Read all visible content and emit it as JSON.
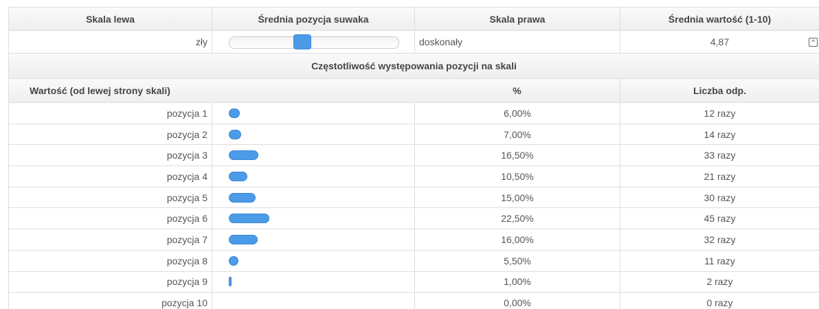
{
  "header": {
    "left": "Skala lewa",
    "slider": "Średnia pozycja suwaka",
    "right": "Skala prawa",
    "average": "Średnia wartość (1-10)"
  },
  "slider_row": {
    "left": "zły",
    "right": "doskonały",
    "average": "4,87"
  },
  "frequency": {
    "title": "Częstotliwość występowania pozycji na skali",
    "columns": [
      "Wartość (od lewej strony skali)",
      "%",
      "Liczba odp."
    ],
    "rows": [
      {
        "label": "pozycja 1",
        "percent": {
          "value": 6,
          "label": "6,00%"
        },
        "count": "12 razy"
      },
      {
        "label": "pozycja 2",
        "percent": {
          "value": 7,
          "label": "7,00%"
        },
        "count": "14 razy"
      },
      {
        "label": "pozycja 3",
        "percent": {
          "value": 16.5,
          "label": "16,50%"
        },
        "count": "33 razy"
      },
      {
        "label": "pozycja 4",
        "percent": {
          "value": 10.5,
          "label": "10,50%"
        },
        "count": "21 razy"
      },
      {
        "label": "pozycja 5",
        "percent": {
          "value": 15,
          "label": "15,00%"
        },
        "count": "30 razy"
      },
      {
        "label": "pozycja 6",
        "percent": {
          "value": 22.5,
          "label": "22,50%"
        },
        "count": "45 razy"
      },
      {
        "label": "pozycja 7",
        "percent": {
          "value": 16,
          "label": "16,00%"
        },
        "count": "32 razy"
      },
      {
        "label": "pozycja 8",
        "percent": {
          "value": 5.5,
          "label": "5,50%"
        },
        "count": "11 razy"
      },
      {
        "label": "pozycja 9",
        "percent": {
          "value": 1,
          "label": "1,00%"
        },
        "count": "2 razy"
      },
      {
        "label": "pozycja 10",
        "percent": {
          "value": 0,
          "label": "0,00%"
        },
        "count": "0 razy"
      }
    ]
  }
}
